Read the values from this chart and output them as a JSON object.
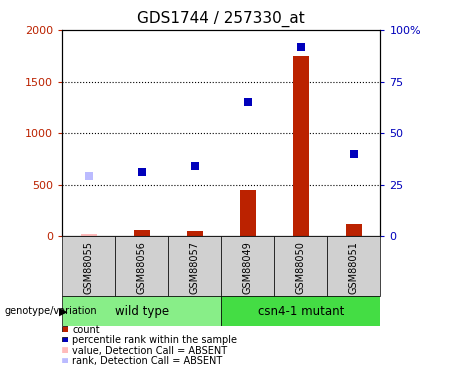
{
  "title": "GDS1744 / 257330_at",
  "samples": [
    "GSM88055",
    "GSM88056",
    "GSM88057",
    "GSM88049",
    "GSM88050",
    "GSM88051"
  ],
  "bar_values": [
    20,
    60,
    55,
    450,
    1750,
    115
  ],
  "bar_absent": [
    true,
    false,
    false,
    false,
    false,
    false
  ],
  "rank_values": [
    29,
    31,
    34,
    65,
    92,
    40
  ],
  "rank_absent": [
    true,
    false,
    false,
    false,
    false,
    false
  ],
  "ylim_left": [
    0,
    2000
  ],
  "ylim_right": [
    0,
    100
  ],
  "yticks_left": [
    0,
    500,
    1000,
    1500,
    2000
  ],
  "ytick_labels_left": [
    "0",
    "500",
    "1000",
    "1500",
    "2000"
  ],
  "yticks_right": [
    0,
    25,
    50,
    75,
    100
  ],
  "ytick_labels_right": [
    "0",
    "25",
    "50",
    "75",
    "100%"
  ],
  "bar_color_normal": "#bb2200",
  "bar_color_absent": "#ffbbbb",
  "rank_color_normal": "#0000bb",
  "rank_color_absent": "#bbbbff",
  "wild_type_color": "#88ee88",
  "mutant_color": "#44dd44",
  "group_label": "genotype/variation",
  "wild_type_label": "wild type",
  "mutant_label": "csn4-1 mutant",
  "legend_items": [
    {
      "label": "count",
      "color": "#bb2200"
    },
    {
      "label": "percentile rank within the sample",
      "color": "#0000bb"
    },
    {
      "label": "value, Detection Call = ABSENT",
      "color": "#ffbbbb"
    },
    {
      "label": "rank, Detection Call = ABSENT",
      "color": "#bbbbff"
    }
  ]
}
